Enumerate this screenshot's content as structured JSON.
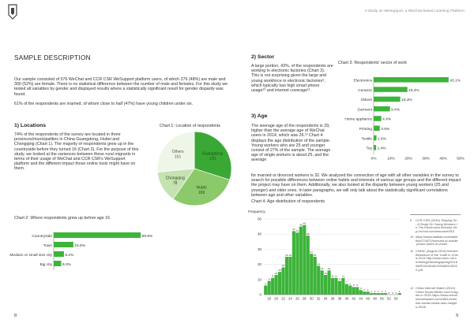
{
  "running_header": "A Study on WeSupport, a WeChat-based Learning Platform",
  "left_page": {
    "title": "SAMPLE DESCRIPTION",
    "intro_p1": "Our sample consisted of 576 WeChat and CCR CSR WeSupport platform users, of which 276 (48%) are male and 300 (52%) are female. There is no statistical difference between the number of male and females. For this study we tested all variables by gender and displayed results where a statistically significant result for gender disparity was found.",
    "intro_p2": "61% of the respondents are married, of whom close to half (47%) have young children under six.",
    "locations_heading": "1) Locations",
    "locations_text": "74% of the respondents of the survey are located in three provinces/municipalities in China Guangdong, Hubei and Chongqing (Chart 1). The majority of respondents grew up in the countryside before they turned 16 (Chart 2). For the purpose of this study, we looked at the variances between these rural migrants in terms of their usage of WeChat and CCR CSR's WeSupport platform and the different impact those online tools might have on them.",
    "page_number": "8"
  },
  "right_page": {
    "sector_heading": "2) Sector",
    "sector_text": "A large portion, 43%, of the respondents are working in electronic factories (Chart 3). This is not surprising given the large and young workforce in electronic factories⁹, which typically has high smart phone usage¹⁰ and internet coverage¹¹.",
    "age_heading": "3) Age",
    "age_text_narrow": "The average age of the respondents is 29, higher than the average age of WeChat users in 2014, which was 26.¹² Chart 4 displays the age distribution of the sample. Young workers who are 25 and younger consist of 27% of the sample. The average age of single workers is about 25, and the average",
    "age_text_wide": "for married or divorced workers is 32. We analyzed the connection of age with all other variables in the survey to search for possible differences between online habits and interests of various age groups and the different impact the project may have on them. Additionally, we also looked at the disparity between young workers (25 and younger) and older ones. In later paragraphs, we will only talk about the statistically significant correlations between age and other variables.",
    "page_number": "9",
    "footnotes": [
      {
        "num": "9",
        "text": "CCR CSR (2016) 'Staying On - A Study On Young Workers In The Electronics Industry' http://ccrcsr.com/resource/815"
      },
      {
        "num": "10",
        "text": "https://www.statista.com/statistics/274672/forecast-of-mobile-phone-users-in-china/"
      },
      {
        "num": "11",
        "text": "CNNIC (August 2016) Internet Behaviour of the Youth in China 2015 http://www.cnnic.net.cn/hlwfzyj/hlwxzbg/qsnbg/201608/P020160812393489128332.pdf"
      },
      {
        "num": "12",
        "text": "China Internet Watch (2014) China Social Media User Insights in 2015 https://www.chinainternetwatch.com/18814/chinese-social-media-user-insights-2015/"
      }
    ]
  },
  "colors": {
    "bar": "#3db43a",
    "pie_green": "#3aa835",
    "pie_mid": "#8cc96a",
    "pie_light": "#c5e2b1",
    "pie_pale": "#eef6e8",
    "axis": "#777777",
    "grid": "#dcdcdc"
  },
  "chart_data": [
    {
      "id": "chart1",
      "type": "pie",
      "title": "Chart 1: Location of respondents",
      "slices": [
        {
          "label": "Guangdong",
          "value": 170,
          "display": "170"
        },
        {
          "label": "Hubei",
          "value": 169,
          "display": "169"
        },
        {
          "label": "Chongqing",
          "value": 78,
          "display": "78"
        },
        {
          "label": "Others",
          "value": 151,
          "display": "151"
        }
      ]
    },
    {
      "id": "chart2",
      "type": "bar",
      "orientation": "horizontal",
      "title": "Chart 2: Where respondents grew up before age 16",
      "categories": [
        "Countryside",
        "Town",
        "Medium or small size city",
        "Big city"
      ],
      "values": [
        69.9,
        15.8,
        8.2,
        6.0
      ],
      "labels": [
        "69.9%",
        "15.8%",
        "8.2%",
        "6.0%"
      ],
      "xlim": [
        0,
        80
      ],
      "ticks": [
        "0%",
        "10%",
        "20%",
        "30%",
        "40%",
        "50%",
        "60%",
        "70%",
        "80%"
      ]
    },
    {
      "id": "chart3",
      "type": "bar",
      "orientation": "horizontal",
      "title": "Chart 3: Respondents' sector of work",
      "categories": [
        "Electronics",
        "Ceramic",
        "Others",
        "Garment",
        "Home appliance",
        "Printing",
        "Textile",
        "Toy"
      ],
      "values": [
        43.1,
        19.4,
        15.3,
        9.4,
        4.4,
        3.5,
        1.6,
        1.4
      ],
      "labels": [
        "43.1%",
        "19.4%",
        "15.3%",
        "9.4%",
        "4.4%",
        "3.5%",
        "1.6%",
        "1.4%"
      ],
      "xlim": [
        0,
        50
      ],
      "ticks": [
        "0%",
        "10%",
        "20%",
        "30%",
        "40%",
        "50%"
      ]
    },
    {
      "id": "chart4",
      "type": "bar",
      "title": "Chart 4: Age distribution of respondents",
      "ylabel": "Frequency",
      "ylim": [
        0,
        50
      ],
      "yticks": [
        "0",
        "10",
        "20",
        "30",
        "40",
        "50"
      ],
      "x": [
        17,
        18,
        19,
        20,
        21,
        22,
        23,
        24,
        25,
        26,
        27,
        28,
        29,
        30,
        31,
        32,
        33,
        34,
        35,
        36,
        37,
        38,
        39,
        40,
        41,
        42,
        43,
        44,
        45,
        46,
        47,
        48,
        49,
        50,
        51,
        52,
        53,
        54,
        55
      ],
      "values": [
        6,
        9,
        11,
        13,
        15,
        18,
        25,
        25,
        42,
        41,
        45,
        46,
        39,
        27,
        25,
        19,
        16,
        13,
        16,
        11,
        11,
        9,
        11,
        7,
        6,
        5,
        5,
        3,
        2,
        2,
        1,
        1,
        1,
        1,
        1,
        0,
        0,
        0,
        1
      ],
      "xtick_labels": [
        "18",
        "20",
        "22",
        "24",
        "26",
        "28",
        "30",
        "32",
        "34",
        "36",
        "38",
        "40",
        "42",
        "44",
        "46",
        "48",
        "50",
        "52",
        "54"
      ],
      "xtick_values": [
        18,
        20,
        22,
        24,
        26,
        28,
        30,
        32,
        34,
        36,
        38,
        40,
        42,
        44,
        46,
        48,
        50,
        52,
        54
      ]
    }
  ]
}
